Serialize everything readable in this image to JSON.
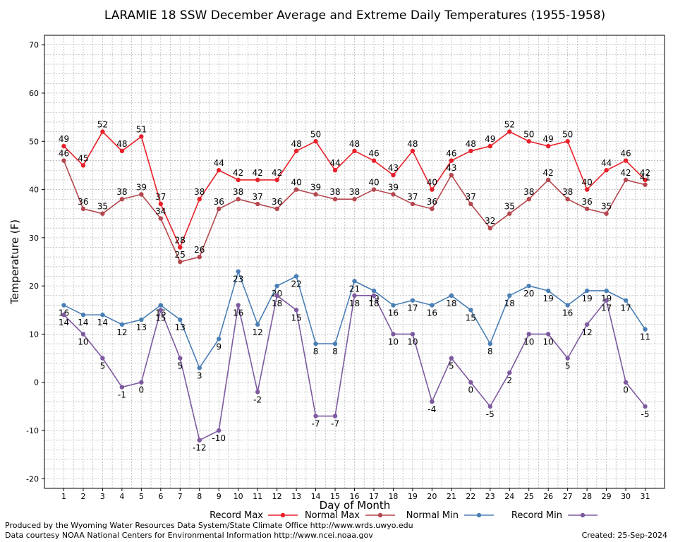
{
  "chart_data": {
    "type": "line",
    "title": "LARAMIE 18 SSW December Average and Extreme Daily Temperatures (1955-1958)",
    "xlabel": "Day of Month",
    "ylabel": "Temperature (F)",
    "x": [
      1,
      2,
      3,
      4,
      5,
      6,
      7,
      8,
      9,
      10,
      11,
      12,
      13,
      14,
      15,
      16,
      17,
      18,
      19,
      20,
      21,
      22,
      23,
      24,
      25,
      26,
      27,
      28,
      29,
      30,
      31
    ],
    "xlim": [
      0,
      32
    ],
    "ylim": [
      -22,
      72
    ],
    "yticks": [
      -20,
      -10,
      0,
      10,
      20,
      30,
      40,
      50,
      60,
      70
    ],
    "grid": true,
    "legend_position": "bottom",
    "series": [
      {
        "name": "Record Max",
        "color": "#e8202a",
        "values": [
          49,
          45,
          52,
          48,
          51,
          37,
          28,
          38,
          44,
          42,
          42,
          42,
          48,
          50,
          44,
          48,
          46,
          43,
          48,
          40,
          46,
          48,
          49,
          52,
          50,
          49,
          50,
          40,
          44,
          46,
          42
        ]
      },
      {
        "name": "Normal Max",
        "color": "#b5474f",
        "values": [
          46,
          36,
          35,
          38,
          39,
          34,
          25,
          26,
          36,
          38,
          37,
          36,
          40,
          39,
          38,
          38,
          40,
          39,
          37,
          36,
          43,
          37,
          32,
          35,
          38,
          42,
          38,
          36,
          35,
          42,
          41
        ]
      },
      {
        "name": "Normal Min",
        "color": "#4a7fb5",
        "values": [
          16,
          14,
          14,
          12,
          13,
          16,
          13,
          3,
          9,
          23,
          12,
          20,
          22,
          8,
          8,
          21,
          19,
          16,
          17,
          16,
          18,
          15,
          8,
          18,
          20,
          19,
          16,
          19,
          19,
          17,
          11
        ]
      },
      {
        "name": "Record Min",
        "color": "#7d5aa0",
        "values": [
          14,
          10,
          5,
          -1,
          0,
          15,
          5,
          -12,
          -10,
          16,
          -2,
          18,
          15,
          -7,
          -7,
          18,
          18,
          10,
          10,
          -4,
          5,
          0,
          -5,
          2,
          10,
          10,
          5,
          12,
          17,
          0,
          -5
        ]
      }
    ]
  },
  "footer": {
    "left1": "Produced by the Wyoming Water Resources Data System/State Climate Office http://www.wrds.uwyo.edu",
    "left2": "Data courtesy NOAA National Centers for Environmental Information http://www.ncei.noaa.gov",
    "created": "Created:  25-Sep-2024"
  }
}
